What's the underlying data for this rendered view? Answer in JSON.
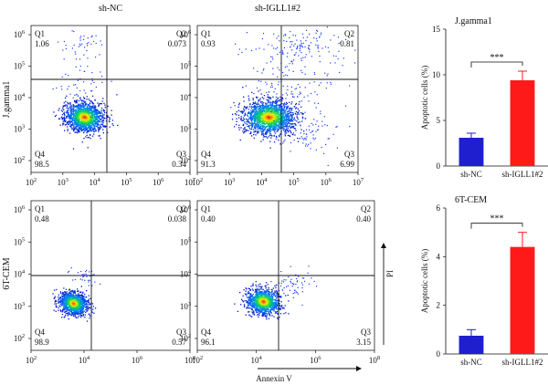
{
  "chart_data": [
    {
      "type": "scatter",
      "title": "sh-NC",
      "ylabel": "J.gamma1",
      "x_ticks": [
        "10^2",
        "10^3",
        "10^4",
        "10^5",
        "10^6",
        "10^7"
      ],
      "y_ticks": [
        "10^2",
        "10^3",
        "10^4",
        "10^5",
        "10^6"
      ],
      "quadrants": [
        {
          "name": "Q1",
          "value": "1.06"
        },
        {
          "name": "Q2",
          "value": "0.073"
        },
        {
          "name": "Q3",
          "value": "0.34"
        },
        {
          "name": "Q4",
          "value": "98.5"
        }
      ]
    },
    {
      "type": "scatter",
      "title": "sh-IGLL1#2",
      "x_ticks": [
        "10^2",
        "10^3",
        "10^4",
        "10^5",
        "10^6",
        "10^7"
      ],
      "y_ticks": [
        "10^2",
        "10^3",
        "10^4",
        "10^5",
        "10^6"
      ],
      "quadrants": [
        {
          "name": "Q1",
          "value": "0.93"
        },
        {
          "name": "Q2",
          "value": "0.81"
        },
        {
          "name": "Q3",
          "value": "6.99"
        },
        {
          "name": "Q4",
          "value": "91.3"
        }
      ]
    },
    {
      "type": "bar",
      "title": "J.gamma1",
      "ylabel": "Apoptotic cells (%)",
      "categories": [
        "sh-NC",
        "sh-IGLL1#2"
      ],
      "values": [
        3.1,
        9.4
      ],
      "errors": [
        0.5,
        1.0
      ],
      "ylim": [
        0,
        15
      ],
      "y_ticks": [
        "0",
        "5",
        "10",
        "15"
      ],
      "significance": "***",
      "colors": [
        "#1f1fcf",
        "#ff1a1a"
      ]
    },
    {
      "type": "scatter",
      "ylabel": "6T-CEM",
      "x_ticks": [
        "10^2",
        "10^4",
        "10^6",
        "10^8"
      ],
      "y_ticks": [
        "10^2",
        "10^3",
        "10^4",
        "10^5",
        "10^6"
      ],
      "quadrants": [
        {
          "name": "Q1",
          "value": "0.48"
        },
        {
          "name": "Q2",
          "value": "0.038"
        },
        {
          "name": "Q3",
          "value": "0.57"
        },
        {
          "name": "Q4",
          "value": "98.9"
        }
      ]
    },
    {
      "type": "scatter",
      "xlabel": "Annexin V",
      "ylabel": "PI",
      "x_ticks": [
        "10^2",
        "10^4",
        "10^6",
        "10^8"
      ],
      "y_ticks": [
        "10^2",
        "10^3",
        "10^4",
        "10^5",
        "10^6"
      ],
      "quadrants": [
        {
          "name": "Q1",
          "value": "0.40"
        },
        {
          "name": "Q2",
          "value": "0.40"
        },
        {
          "name": "Q3",
          "value": "3.15"
        },
        {
          "name": "Q4",
          "value": "96.1"
        }
      ]
    },
    {
      "type": "bar",
      "title": "6T-CEM",
      "ylabel": "Apoptotic cells (%)",
      "categories": [
        "sh-NC",
        "sh-IGLL1#2"
      ],
      "values": [
        0.75,
        4.4
      ],
      "errors": [
        0.25,
        0.6
      ],
      "ylim": [
        0,
        6
      ],
      "y_ticks": [
        "0",
        "2",
        "4",
        "6"
      ],
      "significance": "***",
      "colors": [
        "#1f1fcf",
        "#ff1a1a"
      ]
    }
  ]
}
